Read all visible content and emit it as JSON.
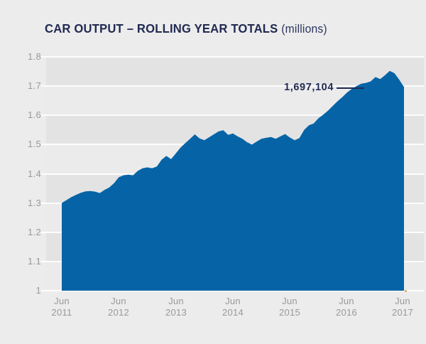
{
  "page": {
    "background": "#ececec"
  },
  "header": {
    "title": "CAR OUTPUT – ROLLING YEAR TOTALS",
    "unit": "(millions)"
  },
  "annotation": {
    "value": "1,697,104"
  },
  "chart_data": {
    "type": "area",
    "title": "CAR OUTPUT – ROLLING YEAR TOTALS (millions)",
    "series_name": "Car output rolling year total (millions)",
    "x_interval": "monthly",
    "x_start": "Jun 2011",
    "x_end": "Jun 2017",
    "x_tick_labels": [
      [
        "Jun",
        "2011"
      ],
      [
        "Jun",
        "2012"
      ],
      [
        "Jun",
        "2013"
      ],
      [
        "Jun",
        "2014"
      ],
      [
        "Jun",
        "2015"
      ],
      [
        "Jun",
        "2016"
      ],
      [
        "Jun",
        "2017"
      ]
    ],
    "y_tick_labels": [
      "1.8",
      "1.7",
      "1.6",
      "1.5",
      "1.4",
      "1.3",
      "1.2",
      "1.1",
      "1"
    ],
    "ylim": [
      1,
      1.8
    ],
    "grid": "horizontal-bands",
    "legend": "none",
    "values": [
      1.3,
      1.31,
      1.32,
      1.328,
      1.335,
      1.34,
      1.341,
      1.339,
      1.334,
      1.345,
      1.353,
      1.368,
      1.388,
      1.395,
      1.397,
      1.395,
      1.41,
      1.419,
      1.422,
      1.419,
      1.425,
      1.448,
      1.461,
      1.45,
      1.47,
      1.49,
      1.505,
      1.52,
      1.535,
      1.521,
      1.515,
      1.525,
      1.535,
      1.545,
      1.549,
      1.533,
      1.538,
      1.528,
      1.52,
      1.508,
      1.5,
      1.51,
      1.52,
      1.523,
      1.526,
      1.52,
      1.528,
      1.536,
      1.524,
      1.515,
      1.522,
      1.55,
      1.566,
      1.572,
      1.59,
      1.602,
      1.616,
      1.632,
      1.648,
      1.662,
      1.678,
      1.69,
      1.7,
      1.708,
      1.711,
      1.716,
      1.731,
      1.724,
      1.737,
      1.752,
      1.744,
      1.722,
      1.697
    ],
    "highlight_point": {
      "x": "Jun 2017",
      "value": 1697104,
      "label": "1,697,104"
    },
    "colors": {
      "area": "#0664a6",
      "band_dark": "#e3e3e4",
      "band_light": "#ebebec",
      "gridline": "#fdfdfd",
      "axis_text": "#97999b",
      "title_text": "#212a52",
      "end_marker": "#eba04a"
    }
  }
}
